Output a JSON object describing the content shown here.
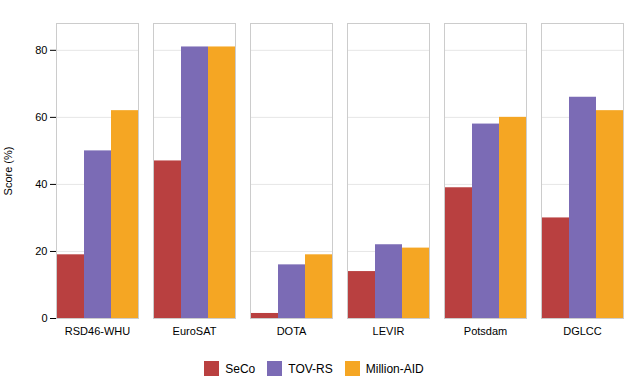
{
  "chart_data": {
    "type": "bar",
    "categories": [
      "RSD46-WHU",
      "EuroSAT",
      "DOTA",
      "LEVIR",
      "Potsdam",
      "DGLCC"
    ],
    "series": [
      {
        "name": "SeCo",
        "color": "#B94040",
        "values": [
          19,
          47,
          1.5,
          14,
          39,
          30
        ]
      },
      {
        "name": "TOV-RS",
        "color": "#7B6BB5",
        "values": [
          50,
          81,
          16,
          22,
          58,
          66
        ]
      },
      {
        "name": "Million-AID",
        "color": "#F5A623",
        "values": [
          62,
          81,
          19,
          21,
          60,
          62
        ]
      }
    ],
    "ylabel": "Score (%)",
    "ylim": [
      0,
      88
    ],
    "yticks": [
      0,
      20,
      40,
      60,
      80
    ],
    "grid": true,
    "legend": "bottom"
  }
}
